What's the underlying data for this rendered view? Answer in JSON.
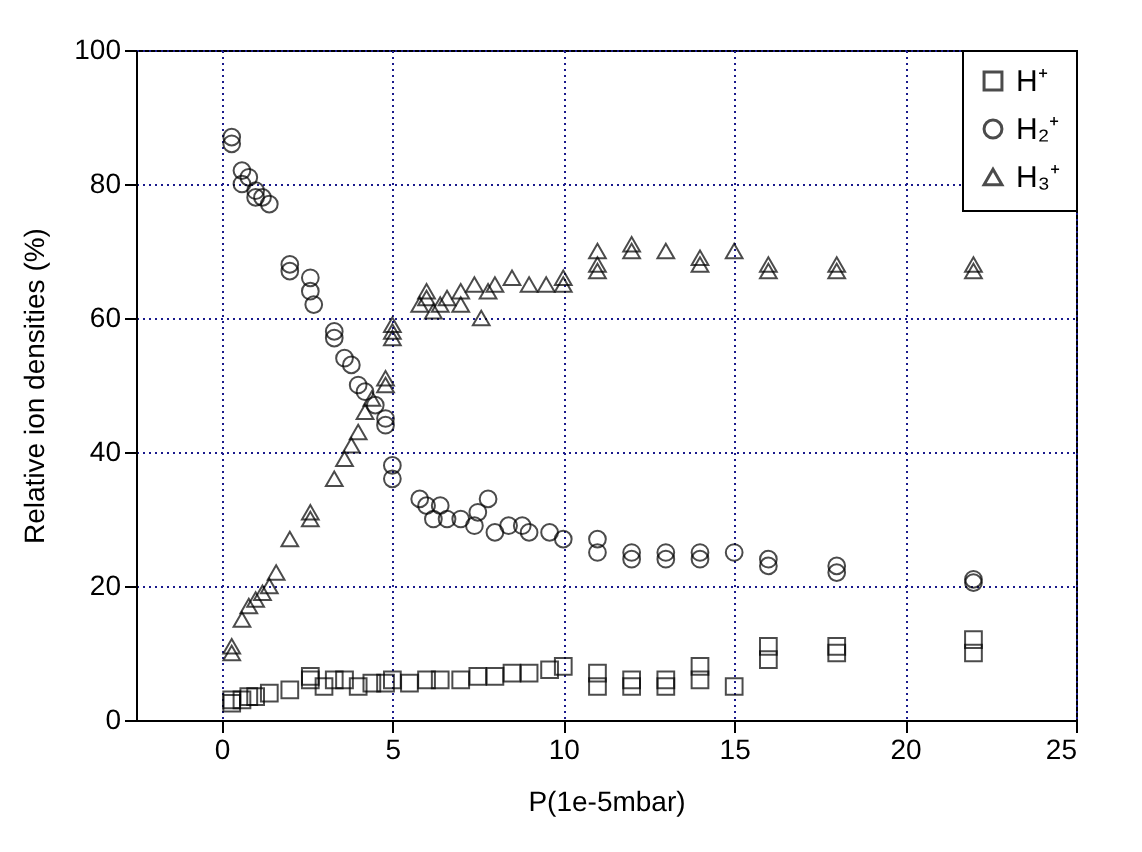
{
  "chart_data": {
    "type": "scatter",
    "xlabel": "P(1e-5mbar)",
    "ylabel": "Relative ion densities (%)",
    "xlim": [
      -2.5,
      25
    ],
    "xticks": [
      0,
      5,
      10,
      15,
      20,
      25
    ],
    "ylim": [
      0,
      100
    ],
    "yticks": [
      0,
      20,
      40,
      60,
      80,
      100
    ],
    "grid": true,
    "legend": "top right",
    "series": [
      {
        "name": "H⁺",
        "color": "#000000",
        "marker": "square",
        "x": [
          0.3,
          0.3,
          0.6,
          0.8,
          1,
          1.4,
          2,
          2.6,
          2.6,
          3,
          3.3,
          3.6,
          4,
          4.4,
          4.8,
          5,
          5.5,
          6,
          6.4,
          7,
          7.5,
          8,
          8.5,
          9,
          9.6,
          10,
          11,
          11,
          12,
          12,
          13,
          13,
          14,
          14,
          15,
          16,
          16,
          18,
          18,
          22,
          22
        ],
        "values": [
          3,
          2.5,
          3,
          3.5,
          3.5,
          4,
          4.5,
          6,
          6.5,
          5,
          6,
          6,
          5,
          5.5,
          5.5,
          6,
          5.5,
          6,
          6,
          6,
          6.5,
          6.5,
          7,
          7,
          7.5,
          8,
          7,
          5,
          6,
          5,
          6,
          5,
          8,
          6,
          5,
          11,
          9,
          11,
          10,
          12,
          10
        ]
      },
      {
        "name": "H₂⁺",
        "color": "#000000",
        "marker": "circle",
        "x": [
          0.3,
          0.3,
          0.6,
          0.6,
          0.8,
          1,
          1,
          1.2,
          1.4,
          2,
          2,
          2.6,
          2.6,
          2.7,
          3.3,
          3.3,
          3.6,
          3.8,
          4,
          4.2,
          4.5,
          4.8,
          4.8,
          5,
          5,
          5.8,
          6,
          6.2,
          6.4,
          6.6,
          7,
          7.4,
          7.5,
          7.8,
          8,
          8.4,
          8.8,
          9,
          9.6,
          10,
          11,
          11,
          12,
          12,
          13,
          13,
          14,
          14,
          15,
          16,
          16,
          18,
          18,
          22,
          22
        ],
        "values": [
          87,
          86,
          82,
          80,
          81,
          79,
          78,
          78,
          77,
          68,
          67,
          66,
          64,
          62,
          58,
          57,
          54,
          53,
          50,
          49,
          47,
          45,
          44,
          38,
          36,
          33,
          32,
          30,
          32,
          30,
          30,
          29,
          31,
          33,
          28,
          29,
          29,
          28,
          28,
          27,
          27,
          25,
          25,
          24,
          24,
          25,
          25,
          24,
          25,
          24,
          23,
          23,
          22,
          21,
          20.5
        ]
      },
      {
        "name": "H₃⁺",
        "color": "#000000",
        "marker": "triangle",
        "x": [
          0.3,
          0.3,
          0.6,
          0.8,
          1,
          1.2,
          1.4,
          1.6,
          2,
          2.6,
          2.6,
          3.3,
          3.6,
          3.8,
          4,
          4.2,
          4.4,
          4.8,
          4.8,
          5,
          5,
          5,
          5.8,
          6,
          6,
          6.2,
          6.4,
          6.6,
          7,
          7,
          7.4,
          7.6,
          7.8,
          8,
          8.5,
          9,
          9.5,
          10,
          10,
          11,
          11,
          11,
          12,
          12,
          13,
          14,
          14,
          15,
          16,
          16,
          18,
          18,
          22,
          22
        ],
        "values": [
          11,
          10,
          15,
          17,
          18,
          19,
          20,
          22,
          27,
          30,
          31,
          36,
          39,
          41,
          43,
          46,
          48,
          50,
          51,
          57,
          58,
          59,
          62,
          64,
          63,
          61,
          62,
          63,
          62,
          64,
          65,
          60,
          64,
          65,
          66,
          65,
          65,
          66,
          65,
          70,
          68,
          67,
          70,
          71,
          70,
          69,
          68,
          70,
          68,
          67,
          68,
          67,
          68,
          67
        ]
      }
    ]
  }
}
